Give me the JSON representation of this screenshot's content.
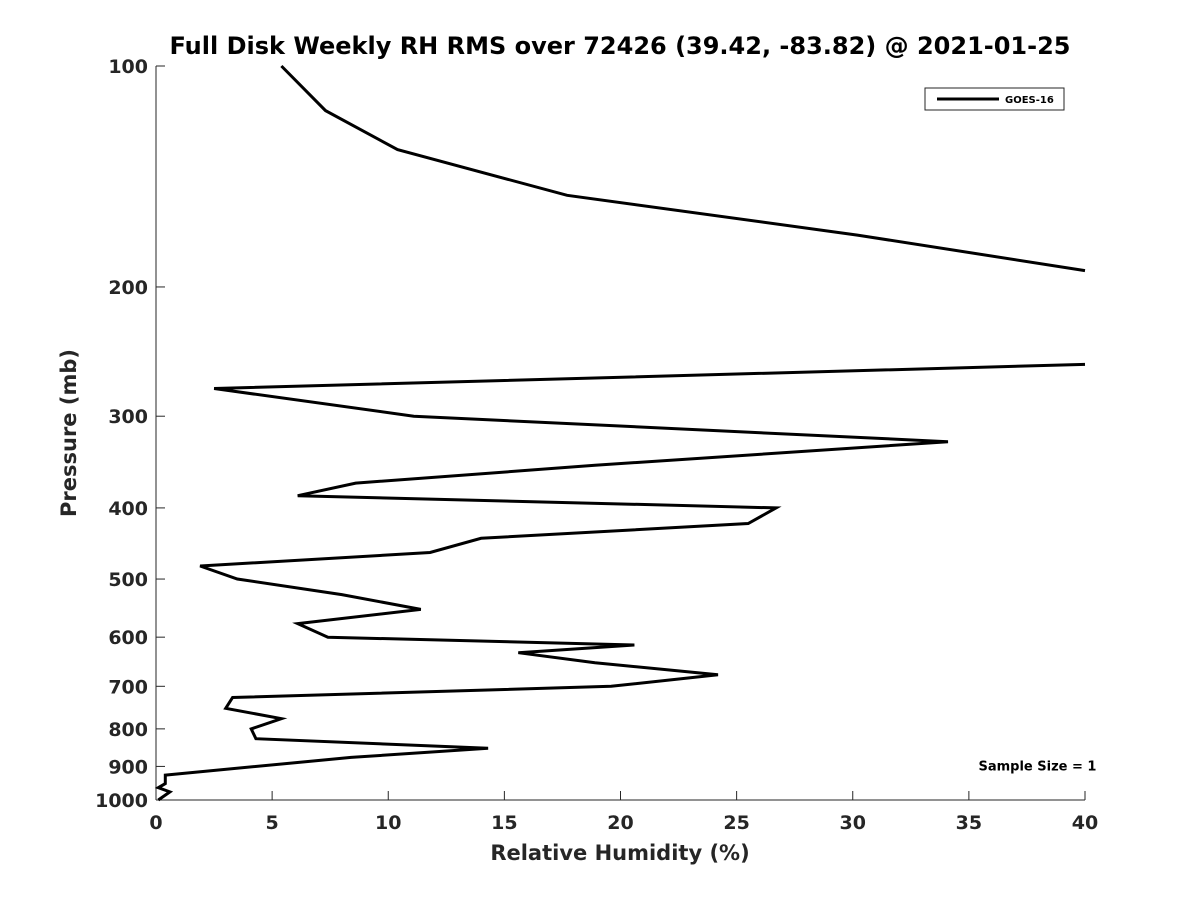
{
  "chart_data": {
    "type": "line",
    "title": "Full Disk Weekly RH RMS over 72426 (39.42, -83.82) @ 2021-01-25",
    "xlabel": "Relative Humidity (%)",
    "ylabel": "Pressure (mb)",
    "xlim": [
      0,
      40
    ],
    "ylim": [
      100,
      1000
    ],
    "yscale": "log",
    "y_reversed": true,
    "grid": false,
    "legend_placement": "top-right",
    "x_ticks": [
      0,
      5,
      10,
      15,
      20,
      25,
      30,
      35,
      40
    ],
    "y_ticks": [
      100,
      200,
      300,
      400,
      500,
      600,
      700,
      800,
      900,
      1000
    ],
    "series": [
      {
        "name": "GOES-16",
        "color": "#000000",
        "points": [
          {
            "x": 5.4,
            "p": 100
          },
          {
            "x": 7.3,
            "p": 115
          },
          {
            "x": 10.4,
            "p": 130
          },
          {
            "x": 17.7,
            "p": 150
          },
          {
            "x": 30.2,
            "p": 170
          },
          {
            "x": 40.0,
            "p": 190
          },
          {
            "x": null,
            "p": null
          },
          {
            "x": 40.0,
            "p": 255
          },
          {
            "x": 2.5,
            "p": 275
          },
          {
            "x": 11.1,
            "p": 300
          },
          {
            "x": 34.1,
            "p": 325
          },
          {
            "x": 18.9,
            "p": 350
          },
          {
            "x": 8.6,
            "p": 370
          },
          {
            "x": 6.1,
            "p": 385
          },
          {
            "x": 26.7,
            "p": 400
          },
          {
            "x": 25.5,
            "p": 420
          },
          {
            "x": 14.0,
            "p": 440
          },
          {
            "x": 11.8,
            "p": 460
          },
          {
            "x": 1.9,
            "p": 480
          },
          {
            "x": 3.5,
            "p": 500
          },
          {
            "x": 8.0,
            "p": 525
          },
          {
            "x": 11.4,
            "p": 550
          },
          {
            "x": 6.1,
            "p": 575
          },
          {
            "x": 7.4,
            "p": 600
          },
          {
            "x": 20.6,
            "p": 615
          },
          {
            "x": 15.6,
            "p": 630
          },
          {
            "x": 18.9,
            "p": 650
          },
          {
            "x": 24.2,
            "p": 675
          },
          {
            "x": 19.6,
            "p": 700
          },
          {
            "x": 3.3,
            "p": 725
          },
          {
            "x": 3.0,
            "p": 750
          },
          {
            "x": 5.4,
            "p": 775
          },
          {
            "x": 4.1,
            "p": 800
          },
          {
            "x": 4.3,
            "p": 825
          },
          {
            "x": 14.3,
            "p": 850
          },
          {
            "x": 8.4,
            "p": 875
          },
          {
            "x": 0.4,
            "p": 925
          },
          {
            "x": 0.4,
            "p": 950
          },
          {
            "x": 0.1,
            "p": 962
          },
          {
            "x": 0.6,
            "p": 975
          },
          {
            "x": 0.1,
            "p": 1000
          }
        ]
      }
    ],
    "annotations": [
      {
        "text": "Sample Size = 1",
        "x": 35.5,
        "p": 900
      }
    ]
  }
}
